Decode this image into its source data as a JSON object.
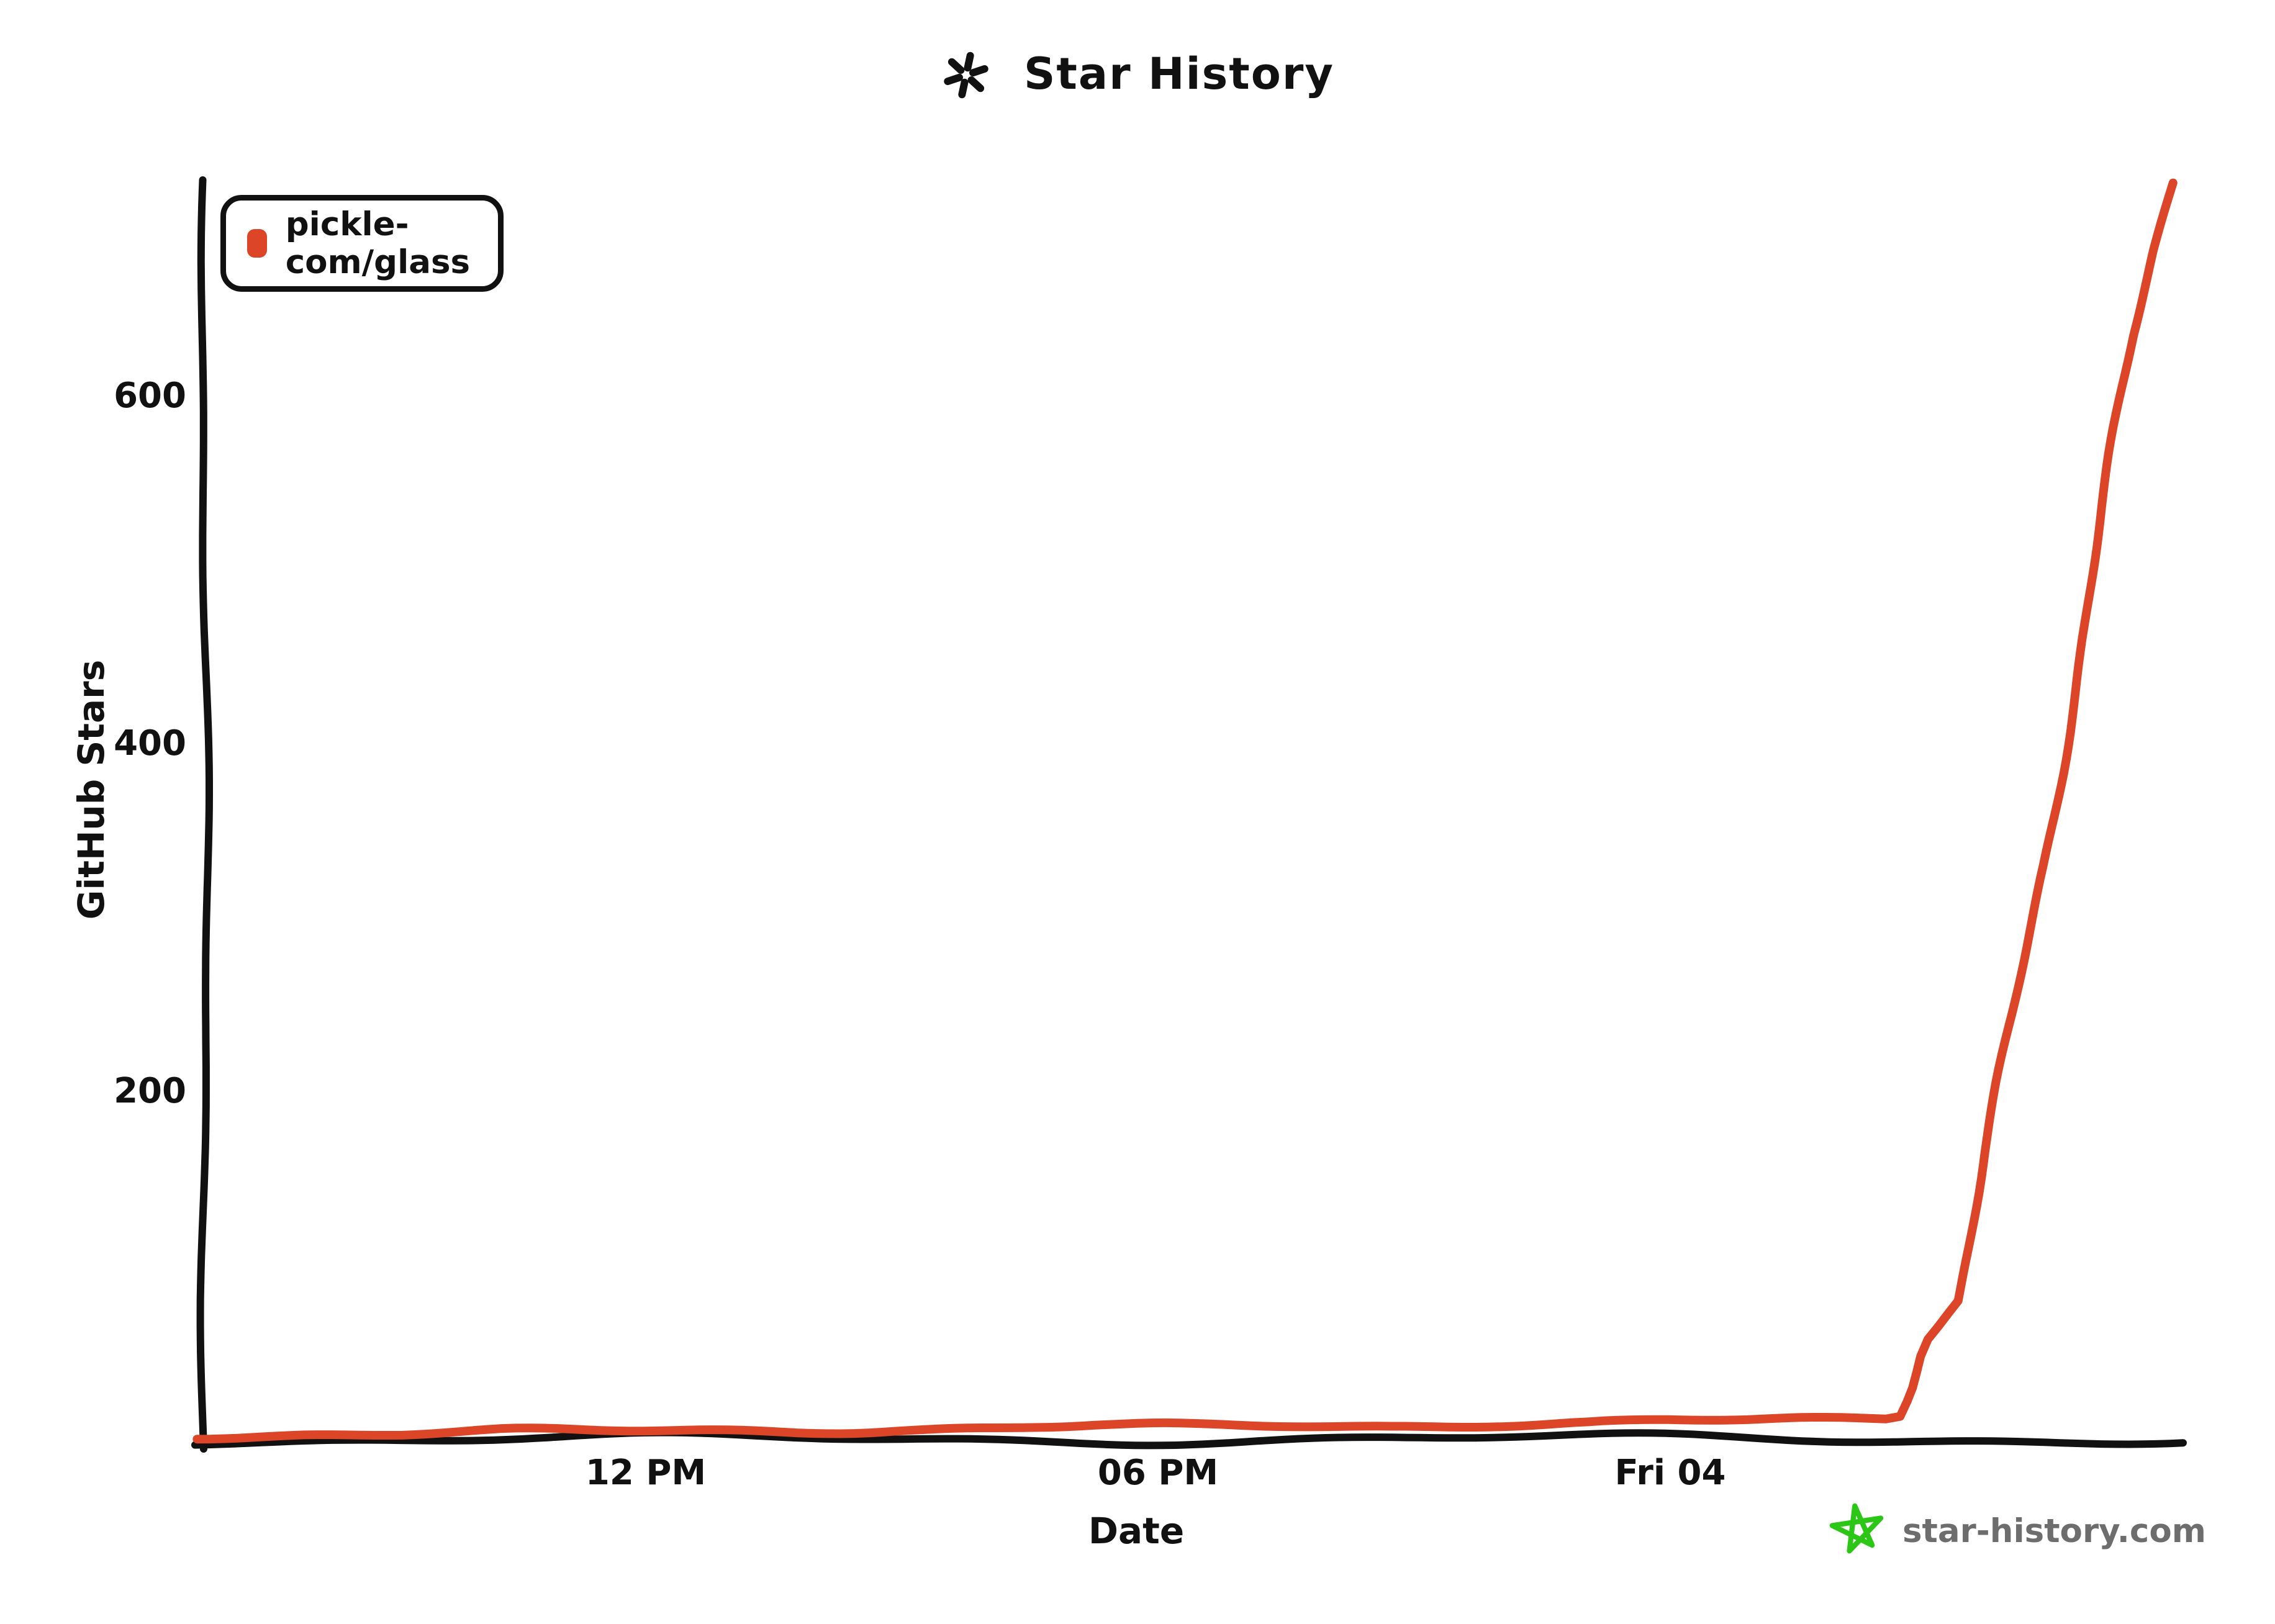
{
  "page": {
    "background": "#ffffff"
  },
  "title": {
    "text": "Star History"
  },
  "legend": {
    "items": [
      {
        "label": "pickle-com/glass",
        "color": "#dd4528"
      }
    ]
  },
  "watermark": {
    "text": "star-history.com",
    "star_color": "#2cc616",
    "text_color": "#6d6d6d"
  },
  "colors": {
    "axis": "#111111",
    "text": "#111111"
  },
  "chart_data": {
    "type": "line",
    "title": "Star History",
    "xlabel": "Date",
    "ylabel": "GitHub Stars",
    "x_tick_labels": [
      "12 PM",
      "06 PM",
      "Fri 04"
    ],
    "x_tick_positions": [
      0.223,
      0.482,
      0.741
    ],
    "y_ticks": [
      200,
      400,
      600
    ],
    "ylim": [
      0,
      730
    ],
    "grid": false,
    "legend_position": "top-left",
    "series": [
      {
        "name": "pickle-com/glass",
        "color": "#dd4528",
        "points_x_fraction_stars": [
          [
            -0.004,
            2
          ],
          [
            0.05,
            3
          ],
          [
            0.1,
            3
          ],
          [
            0.15,
            4
          ],
          [
            0.2,
            4
          ],
          [
            0.25,
            5
          ],
          [
            0.3,
            5
          ],
          [
            0.35,
            6
          ],
          [
            0.4,
            6
          ],
          [
            0.45,
            7
          ],
          [
            0.5,
            7
          ],
          [
            0.55,
            8
          ],
          [
            0.6,
            8
          ],
          [
            0.65,
            9
          ],
          [
            0.7,
            9
          ],
          [
            0.74,
            10
          ],
          [
            0.78,
            10
          ],
          [
            0.82,
            11
          ],
          [
            0.85,
            12
          ],
          [
            0.857,
            14
          ],
          [
            0.862,
            30
          ],
          [
            0.866,
            48
          ],
          [
            0.87,
            58
          ],
          [
            0.876,
            66
          ],
          [
            0.886,
            80
          ],
          [
            0.9,
            165
          ],
          [
            0.915,
            245
          ],
          [
            0.93,
            330
          ],
          [
            0.945,
            430
          ],
          [
            0.96,
            536
          ],
          [
            0.975,
            635
          ],
          [
            0.985,
            684
          ],
          [
            0.994,
            723
          ]
        ]
      }
    ]
  }
}
